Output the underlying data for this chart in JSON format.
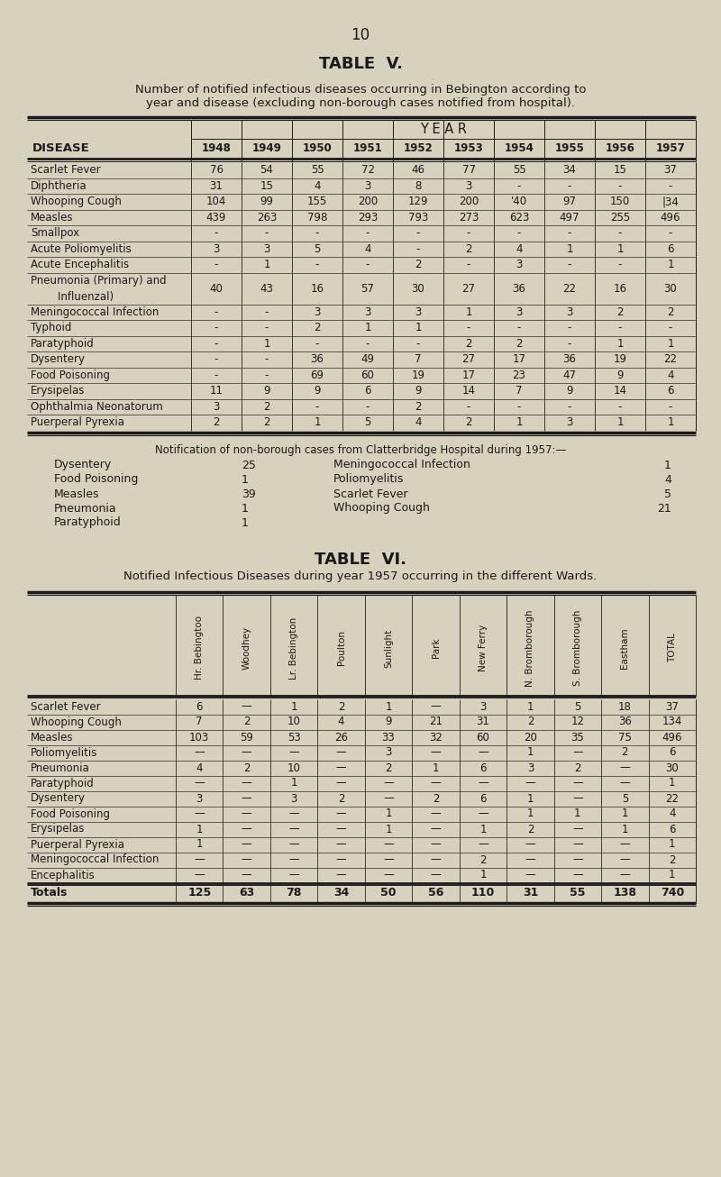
{
  "bg_color": "#d6d2be",
  "text_color": "#1a1a1a",
  "page_number": "10",
  "table5_title": "TABLE  V.",
  "table5_subtitle1": "Number of notified infectious diseases occurring in Bebington according to",
  "table5_subtitle2": "year and disease (excluding non-borough cases notified from hospital).",
  "table5_year_header": "Y E A R",
  "table5_col_header": "DISEASE",
  "table5_years": [
    "1948",
    "1949",
    "1950",
    "1951",
    "1952",
    "1953",
    "1954",
    "1955",
    "1956",
    "1957"
  ],
  "table5_rows": [
    [
      "Scarlet Fever",
      "76",
      "54",
      "55",
      "72",
      "46",
      "77",
      "55",
      "34",
      "15",
      "37"
    ],
    [
      "Diphtheria",
      "31",
      "15",
      "4",
      "3",
      "8",
      "3",
      "-",
      "-",
      "-",
      "-"
    ],
    [
      "Whooping Cough",
      "104",
      "99",
      "155",
      "200",
      "129",
      "200",
      "'40",
      "97",
      "150",
      "|34"
    ],
    [
      "Measles",
      "439",
      "263",
      "798",
      "293",
      "793",
      "273",
      "623",
      "497",
      "255",
      "496"
    ],
    [
      "Smallpox",
      "-",
      "-",
      "-",
      "-",
      "-",
      "-",
      "-",
      "-",
      "-",
      "-"
    ],
    [
      "Acute Poliomyelitis",
      "3",
      "3",
      "5",
      "4",
      "-",
      "2",
      "4",
      "1",
      "1",
      "6"
    ],
    [
      "Acute Encephalitis",
      "-",
      "1",
      "-",
      "-",
      "2",
      "-",
      "3",
      "-",
      "-",
      "1"
    ],
    [
      "Pneumonia (Primary) and|    Influenzal)",
      "40",
      "43",
      "16",
      "57",
      "30",
      "27",
      "36",
      "22",
      "16",
      "30"
    ],
    [
      "Meningococcal Infection",
      "-",
      "-",
      "3",
      "3",
      "3",
      "1",
      "3",
      "3",
      "2",
      "2"
    ],
    [
      "Typhoid",
      "-",
      "-",
      "2",
      "1",
      "1",
      "-",
      "-",
      "-",
      "-",
      "-"
    ],
    [
      "Paratyphoid",
      "-",
      "1",
      "-",
      "-",
      "-",
      "2",
      "2",
      "-",
      "1",
      "1"
    ],
    [
      "Dysentery",
      "-",
      "-",
      "36",
      "49",
      "7",
      "27",
      "17",
      "36",
      "19",
      "22"
    ],
    [
      "Food Poisoning",
      "-",
      "-",
      "69",
      "60",
      "19",
      "17",
      "23",
      "47",
      "9",
      "4"
    ],
    [
      "Erysipelas",
      "11",
      "9",
      "9",
      "6",
      "9",
      "14",
      "7",
      "9",
      "14",
      "6"
    ],
    [
      "Ophthalmia Neonatorum",
      "3",
      "2",
      "-",
      "-",
      "2",
      "-",
      "-",
      "-",
      "-",
      "-"
    ],
    [
      "Puerperal Pyrexia",
      "2",
      "2",
      "1",
      "5",
      "4",
      "2",
      "1",
      "3",
      "1",
      "1"
    ]
  ],
  "notification_title": "Notification of non-borough cases from Clatterbridge Hospital during 1957:—",
  "notif_left": [
    [
      "Dysentery",
      "25"
    ],
    [
      "Food Poisoning",
      "1"
    ],
    [
      "Measles",
      "39"
    ],
    [
      "Pneumonia",
      "1"
    ],
    [
      "Paratyphoid",
      "1"
    ]
  ],
  "notif_right": [
    [
      "Meningococcal Infection",
      "1"
    ],
    [
      "Poliomyelitis",
      "4"
    ],
    [
      "Scarlet Fever",
      "5"
    ],
    [
      "Whooping Cough",
      "21"
    ]
  ],
  "table6_title": "TABLE  VI.",
  "table6_subtitle": "Notified Infectious Diseases during year 1957 occurring in the different Wards.",
  "table6_cols": [
    "Hr. Bebingtoo",
    "Woodhey",
    "Lr. Bebington",
    "Poulton",
    "Sunlight",
    "Park",
    "New Ferry",
    "N. Bromborough",
    "S. Bromborough",
    "Eastham",
    "TOTAL"
  ],
  "table6_rows": [
    [
      "Scarlet Fever",
      "6",
      "—",
      "1",
      "2",
      "1",
      "—",
      "3",
      "1",
      "5",
      "18",
      "37"
    ],
    [
      "Whooping Cough",
      "7",
      "2",
      "10",
      "4",
      "9",
      "21",
      "31",
      "2",
      "12",
      "36",
      "134"
    ],
    [
      "Measles",
      "103",
      "59",
      "53",
      "26",
      "33",
      "32",
      "60",
      "20",
      "35",
      "75",
      "496"
    ],
    [
      "Poliomyelitis",
      "—",
      "—",
      "—",
      "—",
      "3",
      "—",
      "—",
      "1",
      "—",
      "2",
      "6"
    ],
    [
      "Pneumonia",
      "4",
      "2",
      "10",
      "—",
      "2",
      "1",
      "6",
      "3",
      "2",
      "—",
      "30"
    ],
    [
      "Paratyphoid",
      "—",
      "—",
      "1",
      "—",
      "—",
      "—",
      "—",
      "—",
      "—",
      "—",
      "1"
    ],
    [
      "Dysentery",
      "3",
      "—",
      "3",
      "2",
      "—",
      "2",
      "6",
      "1",
      "—",
      "5",
      "22"
    ],
    [
      "Food Poisoning",
      "—",
      "—",
      "—",
      "—",
      "1",
      "—",
      "—",
      "1",
      "1",
      "1",
      "4"
    ],
    [
      "Erysipelas",
      "1",
      "—",
      "—",
      "—",
      "1",
      "—",
      "1",
      "2",
      "—",
      "1",
      "6"
    ],
    [
      "Puerperal Pyrexia",
      "1",
      "—",
      "—",
      "—",
      "—",
      "—",
      "—",
      "—",
      "—",
      "—",
      "1"
    ],
    [
      "Meningococcal Infection",
      "—",
      "—",
      "—",
      "—",
      "—",
      "—",
      "2",
      "—",
      "—",
      "—",
      "2"
    ],
    [
      "Encephalitis",
      "—",
      "—",
      "—",
      "—",
      "—",
      "—",
      "1",
      "—",
      "—",
      "—",
      "1"
    ]
  ],
  "table6_totals": [
    "Totals",
    "125",
    "63",
    "78",
    "34",
    "50",
    "56",
    "110",
    "31",
    "55",
    "138",
    "740"
  ]
}
